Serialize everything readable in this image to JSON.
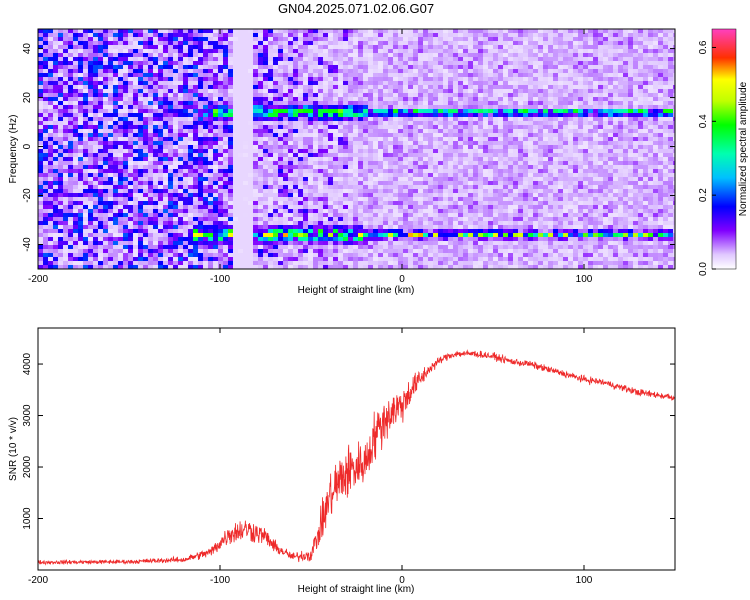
{
  "title": "GN04.2025.071.02.06.G07",
  "colors": {
    "snr_line": "#ee2a2a",
    "axis": "#000000"
  },
  "chart_data": [
    {
      "type": "heatmap",
      "xlabel": "Height of straight line (km)",
      "ylabel": "Frequency (Hz)",
      "xlim": [
        -200,
        150
      ],
      "ylim": [
        -50,
        48
      ],
      "xticks": [
        "-200",
        "-100",
        "0",
        "100"
      ],
      "yticks": [
        "-40",
        "-20",
        "0",
        "20",
        "40"
      ],
      "colorbar": {
        "label": "Normalized spectral amplitude",
        "range": [
          0,
          0.65
        ],
        "ticks": [
          "0.0",
          "0.2",
          "0.4",
          "0.6"
        ],
        "colormap": "white-purple-blue-cyan-green-yellow-red-magenta"
      },
      "bands": [
        {
          "freq_hz": 14,
          "x_start": -110,
          "x_end": 150,
          "peak_amplitude": 0.35
        },
        {
          "freq_hz": -36,
          "x_start": -115,
          "x_end": 150,
          "peak_amplitude": 0.45
        }
      ],
      "noise_region": {
        "x_start": -200,
        "x_end": -30,
        "amplitude": 0.15
      }
    },
    {
      "type": "line",
      "xlabel": "Height of straight line (km)",
      "ylabel": "SNR (10 * v/v)",
      "xlim": [
        -200,
        150
      ],
      "ylim": [
        0,
        4700
      ],
      "xticks": [
        "-200",
        "-100",
        "0",
        "100"
      ],
      "yticks": [
        "1000",
        "2000",
        "3000",
        "4000"
      ],
      "series": [
        {
          "x": [
            -200,
            -150,
            -120,
            -105,
            -95,
            -85,
            -75,
            -70,
            -60,
            -50,
            -45,
            -40,
            -35,
            -30,
            -25,
            -20,
            -15,
            -10,
            -5,
            0,
            5,
            10,
            15,
            20,
            25,
            30,
            35,
            40,
            50,
            60,
            70,
            80,
            90,
            100,
            110,
            120,
            130,
            140,
            150
          ],
          "y": [
            150,
            160,
            200,
            350,
            700,
            800,
            650,
            450,
            250,
            300,
            800,
            1400,
            1700,
            1900,
            2000,
            2100,
            2600,
            2900,
            3100,
            3200,
            3500,
            3700,
            3900,
            4050,
            4150,
            4200,
            4200,
            4200,
            4150,
            4050,
            4000,
            3900,
            3800,
            3700,
            3650,
            3550,
            3450,
            3400,
            3350
          ],
          "jitter": [
            60,
            60,
            80,
            150,
            300,
            350,
            250,
            180,
            120,
            200,
            450,
            700,
            800,
            800,
            700,
            600,
            700,
            650,
            600,
            500,
            400,
            300,
            150,
            120,
            100,
            100,
            100,
            100,
            100,
            100,
            100,
            100,
            100,
            100,
            100,
            100,
            100,
            100,
            100
          ]
        }
      ]
    }
  ]
}
